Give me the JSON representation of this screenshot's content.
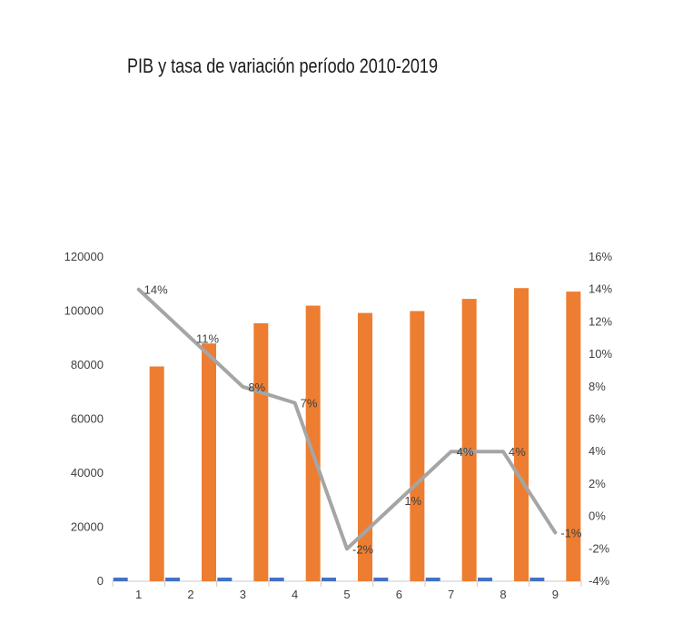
{
  "chart_data": {
    "type": "bar",
    "title": "PIB y tasa de variación período 2010-2019",
    "categories": [
      "1",
      "2",
      "3",
      "4",
      "5",
      "6",
      "7",
      "8",
      "9"
    ],
    "series": [
      {
        "values": [
          1,
          2,
          3,
          4,
          5,
          6,
          7,
          8,
          9
        ],
        "type": "bar",
        "axis": "left",
        "color": "#4472c4"
      },
      {
        "values": [
          79500,
          88000,
          95500,
          102000,
          99300,
          100000,
          104500,
          108500,
          107200
        ],
        "type": "bar",
        "axis": "left",
        "color": "#ed7d31"
      },
      {
        "values": [
          0.14,
          0.11,
          0.08,
          0.07,
          -0.02,
          0.01,
          0.04,
          0.04,
          -0.01
        ],
        "type": "line",
        "axis": "right",
        "color": "#a5a5a5",
        "data_labels": [
          "14%",
          "11%",
          "8%",
          "7%",
          "-2%",
          "1%",
          "4%",
          "4%",
          "-1%"
        ]
      }
    ],
    "y_left": {
      "ylim": [
        0,
        120000
      ],
      "ticks": [
        "0",
        "20000",
        "40000",
        "60000",
        "80000",
        "100000",
        "120000"
      ]
    },
    "y_right": {
      "ylim": [
        -0.04,
        0.16
      ],
      "ticks": [
        "-4%",
        "-2%",
        "0%",
        "2%",
        "4%",
        "6%",
        "8%",
        "10%",
        "12%",
        "14%",
        "16%"
      ]
    },
    "grid": false,
    "legend": "none"
  }
}
